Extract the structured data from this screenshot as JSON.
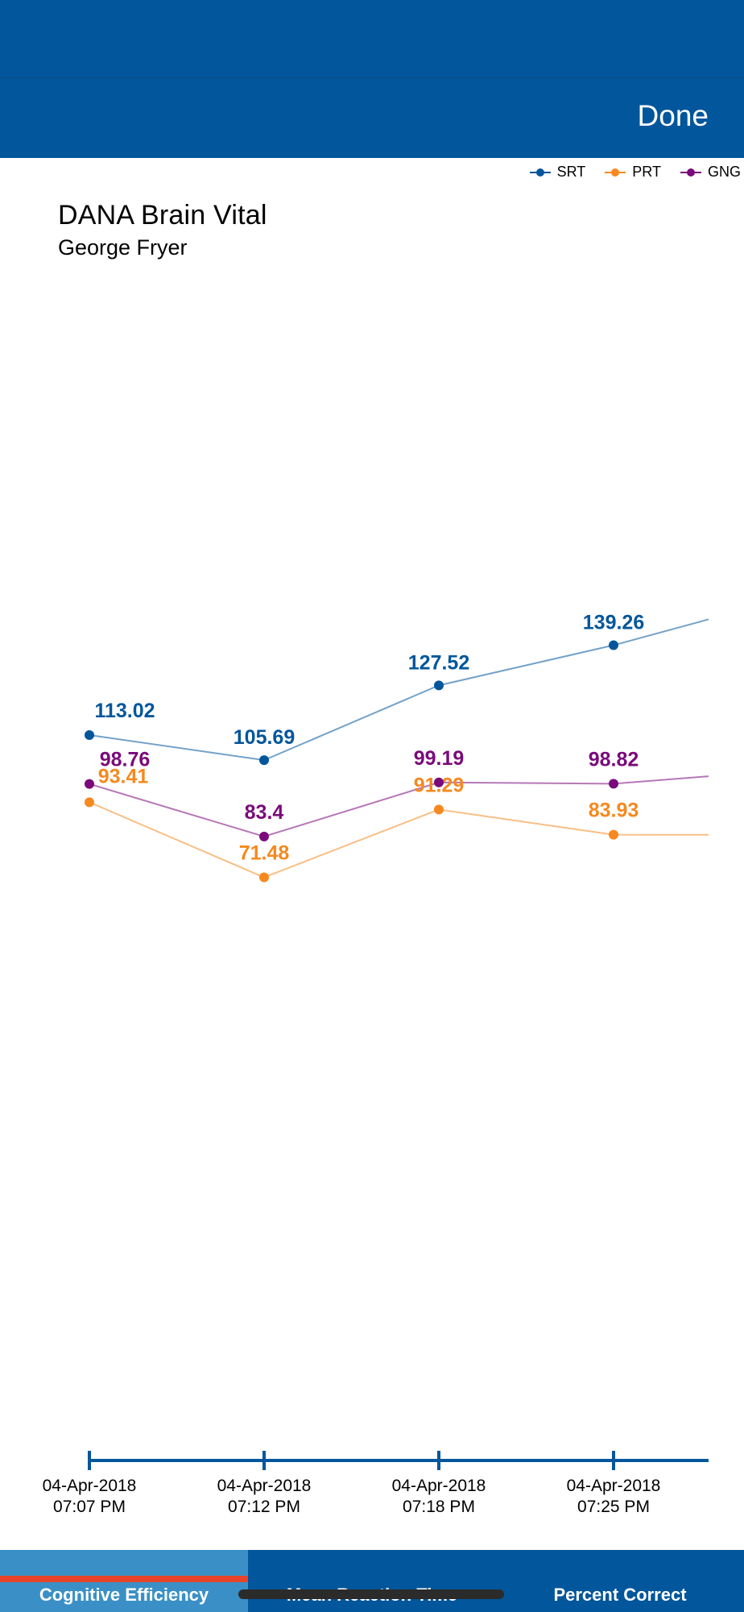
{
  "nav": {
    "done_label": "Done"
  },
  "colors": {
    "header_blue": "#02569b",
    "SRT": "#02569b",
    "PRT": "#f5891f",
    "GNG": "#7a0a7a",
    "tab_active": "#3a90c6",
    "tab_indicator": "#e8442a"
  },
  "chart_data": {
    "type": "line",
    "title": "DANA Brain Vital",
    "subtitle": "George Fryer",
    "categories": [
      [
        "04-Apr-2018",
        "07:07 PM"
      ],
      [
        "04-Apr-2018",
        "07:12 PM"
      ],
      [
        "04-Apr-2018",
        "07:18 PM"
      ],
      [
        "04-Apr-2018",
        "07:25 PM"
      ]
    ],
    "series": [
      {
        "name": "SRT",
        "values": [
          113.02,
          105.69,
          127.52,
          139.26
        ],
        "continues_to": 146.8
      },
      {
        "name": "PRT",
        "values": [
          93.41,
          71.48,
          91.29,
          83.93
        ],
        "continues_to": 83.9
      },
      {
        "name": "GNG",
        "values": [
          98.76,
          83.4,
          99.19,
          98.82
        ],
        "continues_to": 101.0
      }
    ],
    "legend_position": "top-right",
    "grid": false,
    "y_axis_visible": false
  },
  "tabs": [
    {
      "label": "Cognitive Efficiency",
      "active": true
    },
    {
      "label": "Mean Reaction Time",
      "active": false
    },
    {
      "label": "Percent Correct",
      "active": false
    }
  ]
}
